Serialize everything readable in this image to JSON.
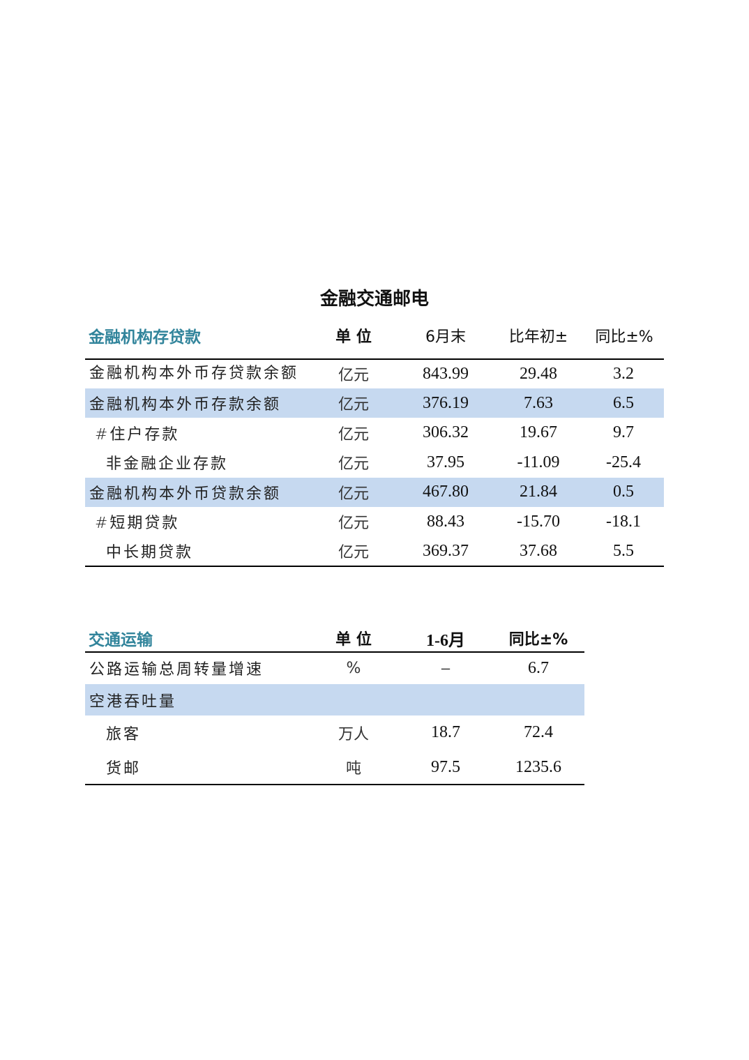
{
  "title": "金融交通邮电",
  "finance": {
    "section": "金融机构存贷款",
    "headers": [
      "单 位",
      "6月末",
      "比年初±",
      "同比±%"
    ],
    "rows": [
      {
        "label": "金融机构本外币存贷款余额",
        "unit": "亿元",
        "value": "843.99",
        "since_start": "29.48",
        "yoy": "3.2",
        "highlight": false
      },
      {
        "label": "金融机构本外币存款余额",
        "unit": "亿元",
        "value": "376.19",
        "since_start": "7.63",
        "yoy": "6.5",
        "highlight": true
      },
      {
        "label": "#住户存款",
        "unit": "亿元",
        "value": "306.32",
        "since_start": "19.67",
        "yoy": "9.7",
        "highlight": false
      },
      {
        "label": "非金融企业存款",
        "unit": "亿元",
        "value": "37.95",
        "since_start": "-11.09",
        "yoy": "-25.4",
        "highlight": false
      },
      {
        "label": "金融机构本外币贷款余额",
        "unit": "亿元",
        "value": "467.80",
        "since_start": "21.84",
        "yoy": "0.5",
        "highlight": true
      },
      {
        "label": "#短期贷款",
        "unit": "亿元",
        "value": "88.43",
        "since_start": "-15.70",
        "yoy": "-18.1",
        "highlight": false
      },
      {
        "label": "中长期贷款",
        "unit": "亿元",
        "value": "369.37",
        "since_start": "37.68",
        "yoy": "5.5",
        "highlight": false
      }
    ]
  },
  "transport": {
    "section": "交通运输",
    "headers": [
      "单 位",
      "1-6月",
      "同比±%"
    ],
    "rows": [
      {
        "label": "公路运输总周转量增速",
        "unit": "%",
        "value": "–",
        "yoy": "6.7"
      },
      {
        "label": "空港吞吐量",
        "unit": "",
        "value": "",
        "yoy": ""
      },
      {
        "label": "旅客",
        "unit": "万人",
        "value": "18.7",
        "yoy": "72.4"
      },
      {
        "label": "货邮",
        "unit": "吨",
        "value": "97.5",
        "yoy": "1235.6"
      }
    ]
  },
  "colors": {
    "section_heading": "#31849b",
    "row_highlight": "#c6d9f0"
  }
}
